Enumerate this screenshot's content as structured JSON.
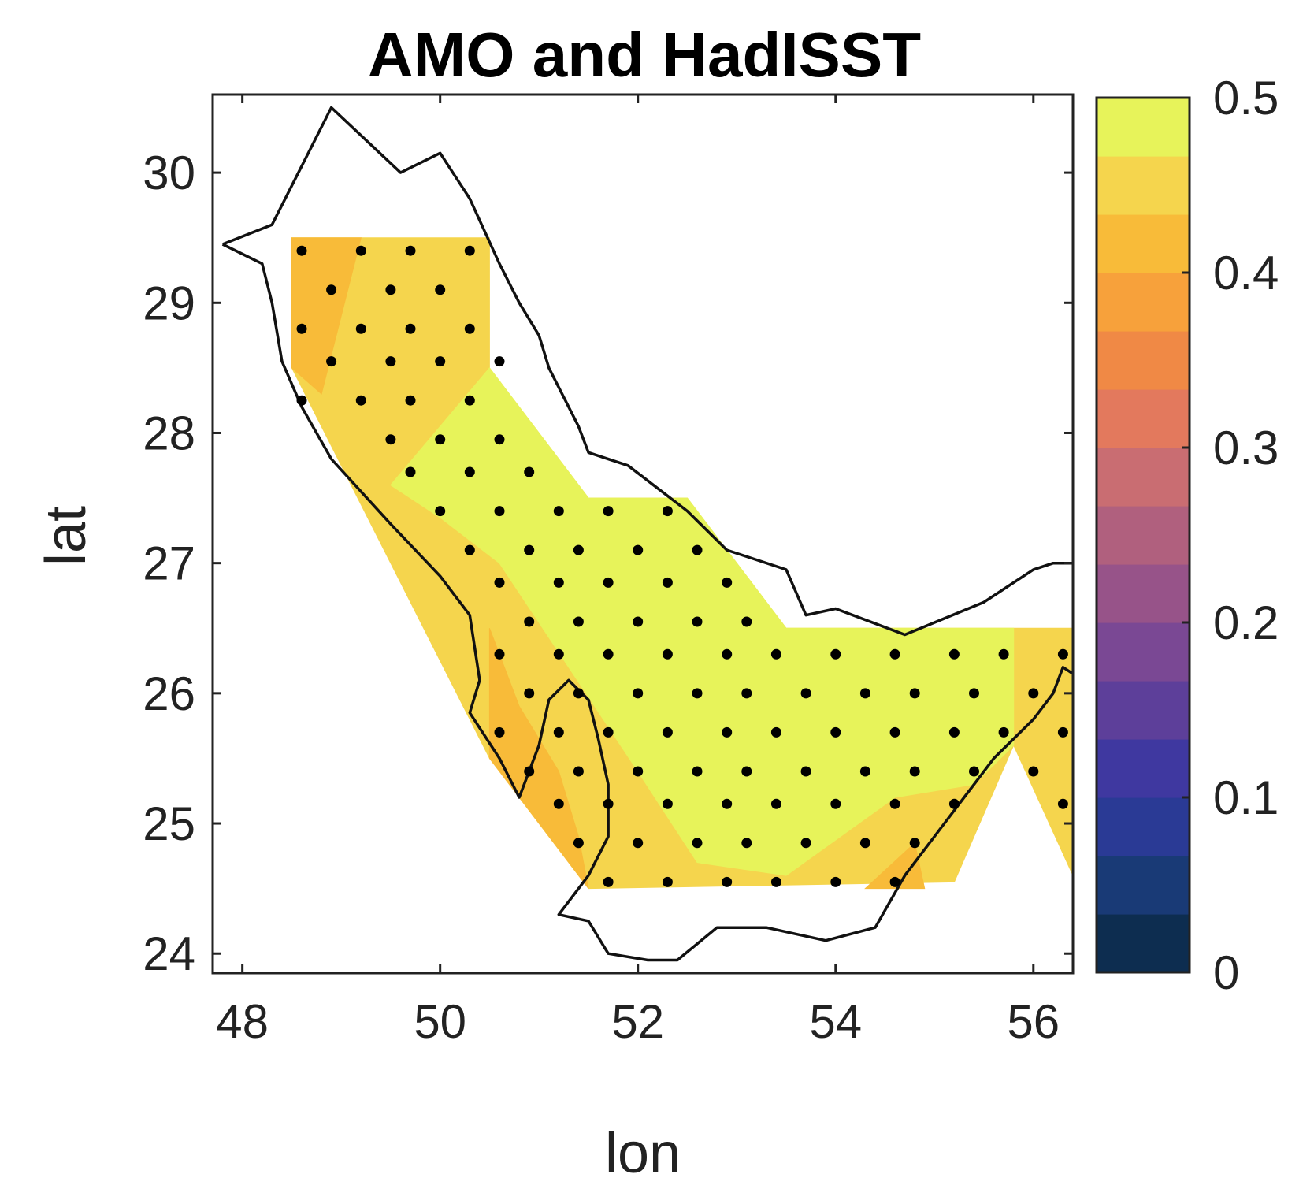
{
  "chart_data": {
    "type": "heatmap",
    "title": "AMO and HadISST",
    "xlabel": "lon",
    "ylabel": "lat",
    "xlim": [
      47.7,
      56.4
    ],
    "ylim": [
      23.85,
      30.6
    ],
    "xticks": [
      48,
      50,
      52,
      54,
      56
    ],
    "yticks": [
      24,
      25,
      26,
      27,
      28,
      29,
      30
    ],
    "colorbar": {
      "range": [
        0,
        0.5
      ],
      "ticks": [
        "0",
        "0.1",
        "0.2",
        "0.3",
        "0.4",
        "0.5"
      ],
      "tick_values": [
        0,
        0.1,
        0.2,
        0.3,
        0.4,
        0.5
      ],
      "levels": 15,
      "colors": [
        "#0a2333",
        "#0d2d50",
        "#193a76",
        "#2a3a95",
        "#3f38a0",
        "#5d3f9a",
        "#7a4894",
        "#975389",
        "#b0607e",
        "#c96d72",
        "#e3795d",
        "#f08945",
        "#f7a13b",
        "#f8bb39",
        "#f5d54d",
        "#e7f35a"
      ]
    },
    "contour_regions": [
      {
        "value": 0.45,
        "polygon": [
          [
            48.5,
            29.5
          ],
          [
            50.5,
            29.5
          ],
          [
            50.5,
            28.5
          ],
          [
            51.5,
            27.5
          ],
          [
            52.5,
            27.5
          ],
          [
            53.5,
            26.5
          ],
          [
            56.4,
            26.5
          ],
          [
            56.4,
            24.6
          ],
          [
            55.8,
            25.6
          ],
          [
            55.2,
            24.55
          ],
          [
            51.5,
            24.5
          ],
          [
            50.5,
            25.5
          ],
          [
            48.5,
            28.5
          ]
        ]
      },
      {
        "value": 0.42,
        "polygon": [
          [
            48.5,
            29.5
          ],
          [
            49.2,
            29.5
          ],
          [
            48.8,
            28.3
          ],
          [
            48.5,
            28.5
          ]
        ]
      },
      {
        "value": 0.42,
        "polygon": [
          [
            50.5,
            26.5
          ],
          [
            50.8,
            25.9
          ],
          [
            51.2,
            25.4
          ],
          [
            51.4,
            24.9
          ],
          [
            51.5,
            24.5
          ],
          [
            50.5,
            25.5
          ]
        ]
      },
      {
        "value": 0.42,
        "polygon": [
          [
            54.3,
            24.5
          ],
          [
            54.8,
            24.85
          ],
          [
            54.9,
            24.5
          ]
        ]
      },
      {
        "value": 0.5,
        "polygon": [
          [
            49.5,
            27.6
          ],
          [
            50.5,
            28.5
          ],
          [
            51.5,
            27.5
          ],
          [
            52.5,
            27.5
          ],
          [
            53.5,
            26.5
          ],
          [
            55.8,
            26.5
          ],
          [
            55.8,
            25.6
          ],
          [
            55.4,
            25.3
          ],
          [
            54.6,
            25.2
          ],
          [
            53.5,
            24.6
          ],
          [
            52.6,
            24.7
          ],
          [
            52.0,
            25.4
          ],
          [
            51.3,
            26.2
          ],
          [
            50.6,
            27.0
          ],
          [
            50.0,
            27.35
          ]
        ]
      }
    ],
    "significance_points": [
      [
        48.6,
        29.4
      ],
      [
        49.2,
        29.4
      ],
      [
        49.7,
        29.4
      ],
      [
        50.3,
        29.4
      ],
      [
        48.9,
        29.1
      ],
      [
        49.5,
        29.1
      ],
      [
        50.0,
        29.1
      ],
      [
        48.6,
        28.8
      ],
      [
        49.2,
        28.8
      ],
      [
        49.7,
        28.8
      ],
      [
        50.3,
        28.8
      ],
      [
        48.9,
        28.55
      ],
      [
        49.5,
        28.55
      ],
      [
        50.0,
        28.55
      ],
      [
        50.6,
        28.55
      ],
      [
        48.6,
        28.25
      ],
      [
        49.2,
        28.25
      ],
      [
        49.7,
        28.25
      ],
      [
        50.3,
        28.25
      ],
      [
        49.5,
        27.95
      ],
      [
        50.0,
        27.95
      ],
      [
        50.6,
        27.95
      ],
      [
        49.7,
        27.7
      ],
      [
        50.3,
        27.7
      ],
      [
        50.9,
        27.7
      ],
      [
        50.0,
        27.4
      ],
      [
        50.6,
        27.4
      ],
      [
        51.2,
        27.4
      ],
      [
        51.7,
        27.4
      ],
      [
        52.3,
        27.4
      ],
      [
        50.3,
        27.1
      ],
      [
        50.9,
        27.1
      ],
      [
        51.4,
        27.1
      ],
      [
        52.0,
        27.1
      ],
      [
        52.6,
        27.1
      ],
      [
        50.6,
        26.85
      ],
      [
        51.2,
        26.85
      ],
      [
        51.7,
        26.85
      ],
      [
        52.3,
        26.85
      ],
      [
        52.9,
        26.85
      ],
      [
        50.9,
        26.55
      ],
      [
        51.4,
        26.55
      ],
      [
        52.0,
        26.55
      ],
      [
        52.6,
        26.55
      ],
      [
        53.1,
        26.55
      ],
      [
        50.6,
        26.3
      ],
      [
        51.2,
        26.3
      ],
      [
        51.7,
        26.3
      ],
      [
        52.3,
        26.3
      ],
      [
        52.9,
        26.3
      ],
      [
        53.4,
        26.3
      ],
      [
        54.0,
        26.3
      ],
      [
        54.6,
        26.3
      ],
      [
        55.2,
        26.3
      ],
      [
        55.7,
        26.3
      ],
      [
        56.3,
        26.3
      ],
      [
        50.9,
        26.0
      ],
      [
        51.4,
        26.0
      ],
      [
        52.0,
        26.0
      ],
      [
        52.6,
        26.0
      ],
      [
        53.1,
        26.0
      ],
      [
        53.7,
        26.0
      ],
      [
        54.3,
        26.0
      ],
      [
        54.8,
        26.0
      ],
      [
        55.4,
        26.0
      ],
      [
        56.0,
        26.0
      ],
      [
        50.6,
        25.7
      ],
      [
        51.2,
        25.7
      ],
      [
        51.7,
        25.7
      ],
      [
        52.3,
        25.7
      ],
      [
        52.9,
        25.7
      ],
      [
        53.4,
        25.7
      ],
      [
        54.0,
        25.7
      ],
      [
        54.6,
        25.7
      ],
      [
        55.2,
        25.7
      ],
      [
        55.7,
        25.7
      ],
      [
        56.3,
        25.7
      ],
      [
        50.9,
        25.4
      ],
      [
        51.4,
        25.4
      ],
      [
        52.0,
        25.4
      ],
      [
        52.6,
        25.4
      ],
      [
        53.1,
        25.4
      ],
      [
        53.7,
        25.4
      ],
      [
        54.3,
        25.4
      ],
      [
        54.8,
        25.4
      ],
      [
        55.4,
        25.4
      ],
      [
        56.0,
        25.4
      ],
      [
        51.2,
        25.15
      ],
      [
        51.7,
        25.15
      ],
      [
        52.3,
        25.15
      ],
      [
        52.9,
        25.15
      ],
      [
        53.4,
        25.15
      ],
      [
        54.0,
        25.15
      ],
      [
        54.6,
        25.15
      ],
      [
        55.2,
        25.15
      ],
      [
        56.3,
        25.15
      ],
      [
        51.4,
        24.85
      ],
      [
        52.0,
        24.85
      ],
      [
        52.6,
        24.85
      ],
      [
        53.1,
        24.85
      ],
      [
        53.7,
        24.85
      ],
      [
        54.3,
        24.85
      ],
      [
        54.8,
        24.85
      ],
      [
        51.7,
        24.55
      ],
      [
        52.3,
        24.55
      ],
      [
        52.9,
        24.55
      ],
      [
        53.4,
        24.55
      ],
      [
        54.0,
        24.55
      ],
      [
        54.6,
        24.55
      ]
    ],
    "coastlines": [
      [
        [
          47.8,
          29.45
        ],
        [
          48.3,
          29.6
        ],
        [
          48.9,
          30.5
        ],
        [
          49.6,
          30.0
        ],
        [
          50.0,
          30.15
        ],
        [
          50.3,
          29.8
        ],
        [
          50.6,
          29.3
        ],
        [
          50.8,
          29.0
        ],
        [
          51.0,
          28.75
        ],
        [
          51.1,
          28.5
        ],
        [
          51.4,
          28.05
        ],
        [
          51.5,
          27.85
        ],
        [
          51.9,
          27.75
        ],
        [
          52.5,
          27.4
        ],
        [
          52.9,
          27.1
        ],
        [
          53.5,
          26.95
        ],
        [
          53.7,
          26.6
        ],
        [
          54.0,
          26.65
        ],
        [
          54.7,
          26.45
        ],
        [
          55.5,
          26.7
        ],
        [
          56.0,
          26.95
        ],
        [
          56.2,
          27.0
        ],
        [
          56.4,
          27.0
        ]
      ],
      [
        [
          47.8,
          29.45
        ],
        [
          48.2,
          29.3
        ],
        [
          48.3,
          29.0
        ],
        [
          48.4,
          28.55
        ],
        [
          48.6,
          28.2
        ],
        [
          48.9,
          27.8
        ],
        [
          49.5,
          27.3
        ],
        [
          50.0,
          26.9
        ],
        [
          50.3,
          26.6
        ],
        [
          50.4,
          26.1
        ],
        [
          50.3,
          25.85
        ],
        [
          50.6,
          25.5
        ],
        [
          50.8,
          25.2
        ],
        [
          51.0,
          25.6
        ],
        [
          51.1,
          25.95
        ],
        [
          51.3,
          26.1
        ],
        [
          51.5,
          25.95
        ],
        [
          51.6,
          25.65
        ],
        [
          51.7,
          25.3
        ],
        [
          51.7,
          24.9
        ],
        [
          51.5,
          24.6
        ],
        [
          51.2,
          24.3
        ],
        [
          51.5,
          24.25
        ],
        [
          51.7,
          24.0
        ],
        [
          52.1,
          23.95
        ],
        [
          52.4,
          23.95
        ],
        [
          52.8,
          24.2
        ],
        [
          53.3,
          24.2
        ],
        [
          53.9,
          24.1
        ],
        [
          54.4,
          24.2
        ],
        [
          54.7,
          24.6
        ],
        [
          55.1,
          25.0
        ],
        [
          55.6,
          25.5
        ],
        [
          56.0,
          25.8
        ],
        [
          56.2,
          26.0
        ],
        [
          56.3,
          26.2
        ],
        [
          56.4,
          26.15
        ]
      ]
    ]
  }
}
